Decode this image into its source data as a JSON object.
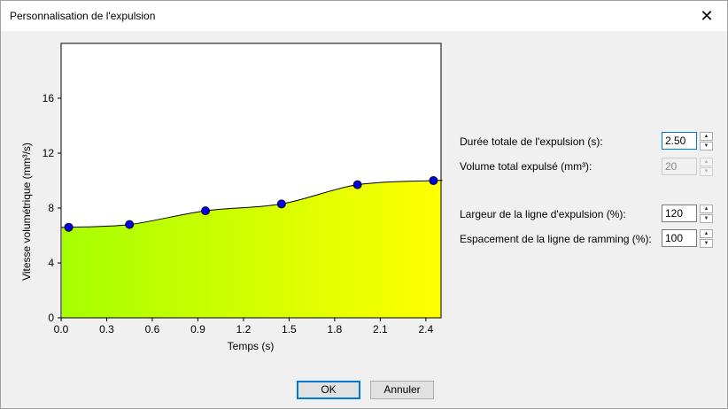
{
  "window": {
    "title": "Personnalisation de l'expulsion",
    "close_glyph": "✕"
  },
  "fields": {
    "duration": {
      "label": "Durée totale de l'expulsion (s):",
      "value": "2.50"
    },
    "volume": {
      "label": "Volume total expulsé (mm³):",
      "value": "20"
    },
    "line_width": {
      "label": "Largeur de la ligne d'expulsion (%):",
      "value": "120"
    },
    "ramming_spacing": {
      "label": "Espacement de la ligne de ramming (%):",
      "value": "100"
    }
  },
  "buttons": {
    "ok": "OK",
    "cancel": "Annuler"
  },
  "spin_glyphs": {
    "up": "▲",
    "down": "▼"
  },
  "chart_data": {
    "type": "area",
    "xlabel": "Temps (s)",
    "ylabel": "Vitesse volumétrique (mm³/s)",
    "xlim": [
      0,
      2.5
    ],
    "ylim": [
      0,
      20
    ],
    "xticks": [
      "0.0",
      "0.3",
      "0.6",
      "0.9",
      "1.2",
      "1.5",
      "1.8",
      "2.1",
      "2.4"
    ],
    "yticks": [
      "0",
      "4",
      "8",
      "12",
      "16"
    ],
    "points": [
      {
        "x": 0.05,
        "y": 6.6
      },
      {
        "x": 0.45,
        "y": 6.8
      },
      {
        "x": 0.95,
        "y": 7.8
      },
      {
        "x": 1.45,
        "y": 8.3
      },
      {
        "x": 1.95,
        "y": 9.7
      },
      {
        "x": 2.45,
        "y": 10.0
      }
    ],
    "colors": {
      "fill_start": "#a6ff00",
      "fill_end": "#ffff00",
      "point": "#0000e0",
      "line": "#000000"
    }
  }
}
